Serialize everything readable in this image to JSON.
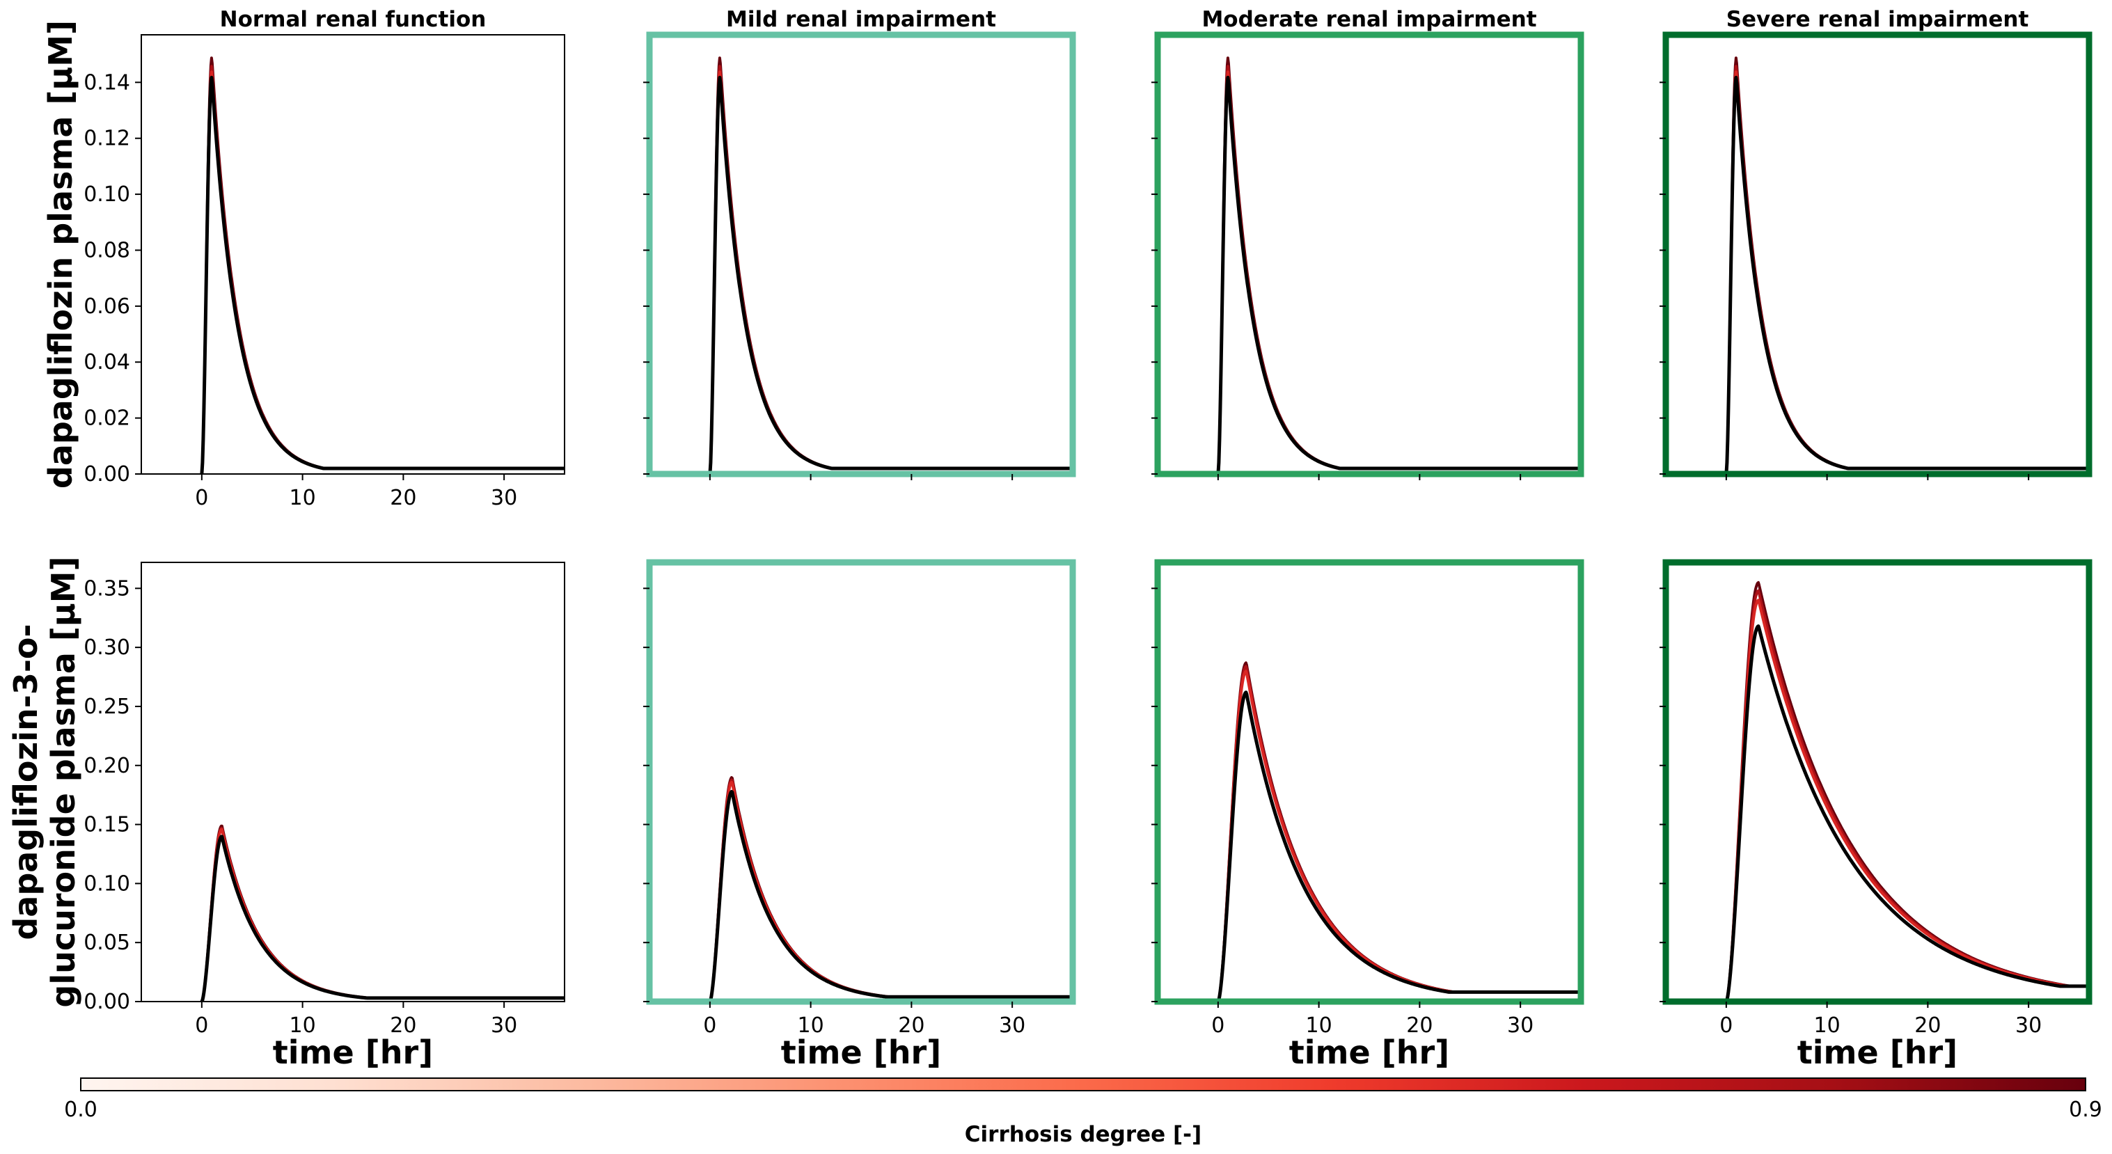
{
  "figure": {
    "colorbar": {
      "label": "Cirrhosis degree [-]",
      "min_label": "0.0",
      "max_label": "0.9",
      "colormap": "Reds",
      "range": [
        0.0,
        0.9
      ]
    }
  },
  "chart_data": [
    {
      "type": "line",
      "panel": "top-1",
      "title": "Normal renal function",
      "ylabel": "dapagliflozin plasma [µM]",
      "xlabel": "",
      "xlim": [
        -6,
        36
      ],
      "ylim": [
        0,
        0.157
      ],
      "xticks": [
        0,
        10,
        20,
        30
      ],
      "yticks": [
        "0.00",
        "0.02",
        "0.04",
        "0.06",
        "0.08",
        "0.10",
        "0.12",
        "0.14"
      ],
      "frame_color": "#000000",
      "curve": {
        "model": "pk",
        "t0": 0,
        "t_peak": 1.0,
        "t_half": 1.8,
        "tail": 0.002
      },
      "series": [
        {
          "cirrhosis": 0.0,
          "peak": 0.142
        },
        {
          "cirrhosis": 0.3,
          "peak": 0.144
        },
        {
          "cirrhosis": 0.6,
          "peak": 0.146
        },
        {
          "cirrhosis": 0.9,
          "peak": 0.149
        }
      ]
    },
    {
      "type": "line",
      "panel": "top-2",
      "title": "Mild renal impairment",
      "xlabel": "",
      "xlim": [
        -6,
        36
      ],
      "ylim": [
        0,
        0.157
      ],
      "frame_color": "#66c2a4",
      "curve": {
        "model": "pk",
        "t0": 0,
        "t_peak": 1.0,
        "t_half": 1.8,
        "tail": 0.002
      },
      "series": [
        {
          "cirrhosis": 0.0,
          "peak": 0.142
        },
        {
          "cirrhosis": 0.3,
          "peak": 0.144
        },
        {
          "cirrhosis": 0.6,
          "peak": 0.146
        },
        {
          "cirrhosis": 0.9,
          "peak": 0.149
        }
      ]
    },
    {
      "type": "line",
      "panel": "top-3",
      "title": "Moderate renal impairment",
      "xlabel": "",
      "xlim": [
        -6,
        36
      ],
      "ylim": [
        0,
        0.157
      ],
      "frame_color": "#2ca25f",
      "curve": {
        "model": "pk",
        "t0": 0,
        "t_peak": 1.0,
        "t_half": 1.8,
        "tail": 0.002
      },
      "series": [
        {
          "cirrhosis": 0.0,
          "peak": 0.142
        },
        {
          "cirrhosis": 0.3,
          "peak": 0.144
        },
        {
          "cirrhosis": 0.6,
          "peak": 0.146
        },
        {
          "cirrhosis": 0.9,
          "peak": 0.149
        }
      ]
    },
    {
      "type": "line",
      "panel": "top-4",
      "title": "Severe renal impairment",
      "xlabel": "",
      "xlim": [
        -6,
        36
      ],
      "ylim": [
        0,
        0.157
      ],
      "frame_color": "#006d2c",
      "curve": {
        "model": "pk",
        "t0": 0,
        "t_peak": 1.0,
        "t_half": 1.8,
        "tail": 0.002
      },
      "series": [
        {
          "cirrhosis": 0.0,
          "peak": 0.142
        },
        {
          "cirrhosis": 0.3,
          "peak": 0.144
        },
        {
          "cirrhosis": 0.6,
          "peak": 0.146
        },
        {
          "cirrhosis": 0.9,
          "peak": 0.149
        }
      ]
    },
    {
      "type": "line",
      "panel": "bottom-1",
      "title": "",
      "ylabel_lines": [
        "dapagliflozin-3-o-",
        "glucuronide plasma [µM]"
      ],
      "xlabel": "time [hr]",
      "xlim": [
        -6,
        36
      ],
      "ylim": [
        0,
        0.372
      ],
      "xticks": [
        0,
        10,
        20,
        30
      ],
      "yticks": [
        "0.00",
        "0.05",
        "0.10",
        "0.15",
        "0.20",
        "0.25",
        "0.30",
        "0.35"
      ],
      "frame_color": "#000000",
      "curve": {
        "model": "pk",
        "t0": 0,
        "t_peak": 2.0,
        "t_half": 2.6,
        "tail": 0.003
      },
      "series": [
        {
          "cirrhosis": 0.0,
          "peak": 0.14
        },
        {
          "cirrhosis": 0.3,
          "peak": 0.146
        },
        {
          "cirrhosis": 0.6,
          "peak": 0.147
        },
        {
          "cirrhosis": 0.9,
          "peak": 0.149
        }
      ]
    },
    {
      "type": "line",
      "panel": "bottom-2",
      "title": "",
      "xlabel": "time [hr]",
      "xlim": [
        -6,
        36
      ],
      "ylim": [
        0,
        0.372
      ],
      "xticks": [
        0,
        10,
        20,
        30
      ],
      "frame_color": "#66c2a4",
      "curve": {
        "model": "pk",
        "t0": 0,
        "t_peak": 2.2,
        "t_half": 2.8,
        "tail": 0.004
      },
      "series": [
        {
          "cirrhosis": 0.0,
          "peak": 0.178
        },
        {
          "cirrhosis": 0.3,
          "peak": 0.186
        },
        {
          "cirrhosis": 0.6,
          "peak": 0.188
        },
        {
          "cirrhosis": 0.9,
          "peak": 0.19
        }
      ]
    },
    {
      "type": "line",
      "panel": "bottom-3",
      "title": "",
      "xlabel": "time [hr]",
      "xlim": [
        -6,
        36
      ],
      "ylim": [
        0,
        0.372
      ],
      "xticks": [
        0,
        10,
        20,
        30
      ],
      "frame_color": "#2ca25f",
      "curve": {
        "model": "pk",
        "t0": 0,
        "t_peak": 2.8,
        "t_half": 4.0,
        "tail": 0.008
      },
      "series": [
        {
          "cirrhosis": 0.0,
          "peak": 0.262
        },
        {
          "cirrhosis": 0.3,
          "peak": 0.28
        },
        {
          "cirrhosis": 0.6,
          "peak": 0.284
        },
        {
          "cirrhosis": 0.9,
          "peak": 0.287
        }
      ]
    },
    {
      "type": "line",
      "panel": "bottom-4",
      "title": "",
      "xlabel": "time [hr]",
      "xlim": [
        -6,
        36
      ],
      "ylim": [
        0,
        0.372
      ],
      "xticks": [
        0,
        10,
        20,
        30
      ],
      "frame_color": "#006d2c",
      "curve": {
        "model": "pk",
        "t0": 0,
        "t_peak": 3.2,
        "t_half": 6.5,
        "tail": 0.013
      },
      "series": [
        {
          "cirrhosis": 0.0,
          "peak": 0.318
        },
        {
          "cirrhosis": 0.3,
          "peak": 0.34
        },
        {
          "cirrhosis": 0.6,
          "peak": 0.348
        },
        {
          "cirrhosis": 0.9,
          "peak": 0.355
        }
      ]
    }
  ]
}
